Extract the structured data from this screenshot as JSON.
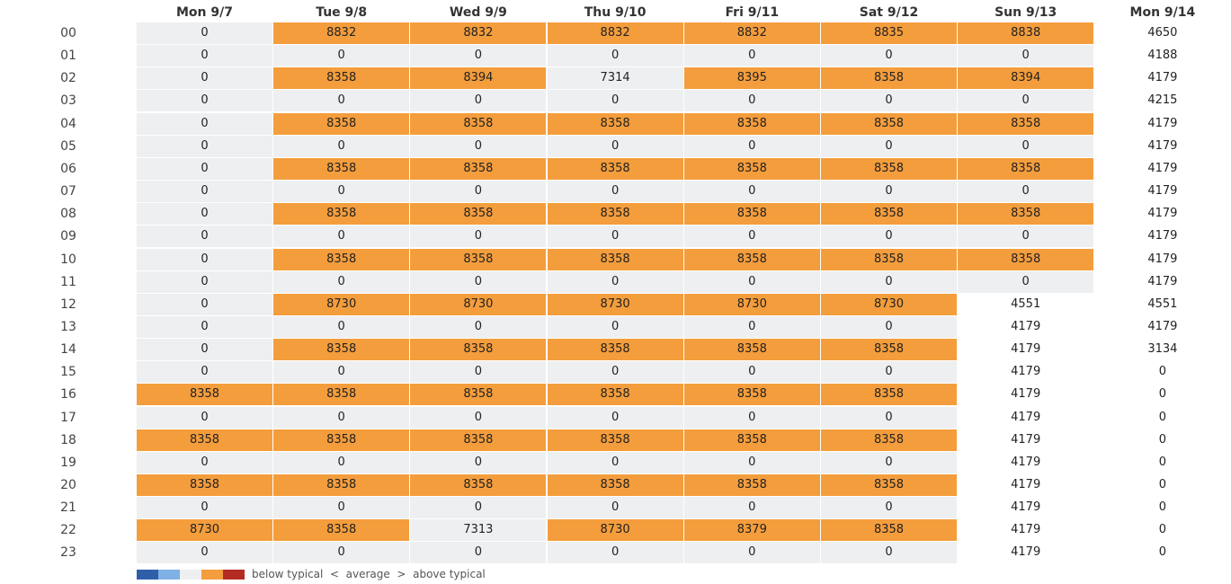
{
  "columns": [
    "Mon 9/7",
    "Tue 9/8",
    "Wed 9/9",
    "Thu 9/10",
    "Fri 9/11",
    "Sat 9/12",
    "Sun 9/13",
    "Mon 9/14"
  ],
  "rows": [
    "00",
    "01",
    "02",
    "03",
    "04",
    "05",
    "06",
    "07",
    "08",
    "09",
    "10",
    "11",
    "12",
    "13",
    "14",
    "15",
    "16",
    "17",
    "18",
    "19",
    "20",
    "21",
    "22",
    "23"
  ],
  "values": [
    [
      0,
      8832,
      8832,
      8832,
      8832,
      8835,
      8838,
      4650
    ],
    [
      0,
      0,
      0,
      0,
      0,
      0,
      0,
      4188
    ],
    [
      0,
      8358,
      8394,
      7314,
      8395,
      8358,
      8394,
      4179
    ],
    [
      0,
      0,
      0,
      0,
      0,
      0,
      0,
      4215
    ],
    [
      0,
      8358,
      8358,
      8358,
      8358,
      8358,
      8358,
      4179
    ],
    [
      0,
      0,
      0,
      0,
      0,
      0,
      0,
      4179
    ],
    [
      0,
      8358,
      8358,
      8358,
      8358,
      8358,
      8358,
      4179
    ],
    [
      0,
      0,
      0,
      0,
      0,
      0,
      0,
      4179
    ],
    [
      0,
      8358,
      8358,
      8358,
      8358,
      8358,
      8358,
      4179
    ],
    [
      0,
      0,
      0,
      0,
      0,
      0,
      0,
      4179
    ],
    [
      0,
      8358,
      8358,
      8358,
      8358,
      8358,
      8358,
      4179
    ],
    [
      0,
      0,
      0,
      0,
      0,
      0,
      0,
      4179
    ],
    [
      0,
      8730,
      8730,
      8730,
      8730,
      8730,
      4551,
      4551
    ],
    [
      0,
      0,
      0,
      0,
      0,
      0,
      4179,
      4179
    ],
    [
      0,
      8358,
      8358,
      8358,
      8358,
      8358,
      4179,
      3134
    ],
    [
      0,
      0,
      0,
      0,
      0,
      0,
      4179,
      0
    ],
    [
      8358,
      8358,
      8358,
      8358,
      8358,
      8358,
      4179,
      0
    ],
    [
      0,
      0,
      0,
      0,
      0,
      0,
      4179,
      0
    ],
    [
      8358,
      8358,
      8358,
      8358,
      8358,
      8358,
      4179,
      0
    ],
    [
      0,
      0,
      0,
      0,
      0,
      0,
      4179,
      0
    ],
    [
      8358,
      8358,
      8358,
      8358,
      8358,
      8358,
      4179,
      0
    ],
    [
      0,
      0,
      0,
      0,
      0,
      0,
      4179,
      0
    ],
    [
      8730,
      8358,
      7313,
      8730,
      8379,
      8358,
      4179,
      0
    ],
    [
      0,
      0,
      0,
      0,
      0,
      0,
      4179,
      0
    ]
  ],
  "levels": [
    [
      0,
      1,
      1,
      1,
      1,
      1,
      1,
      2
    ],
    [
      0,
      0,
      0,
      0,
      0,
      0,
      0,
      2
    ],
    [
      0,
      1,
      1,
      0,
      1,
      1,
      1,
      2
    ],
    [
      0,
      0,
      0,
      0,
      0,
      0,
      0,
      2
    ],
    [
      0,
      1,
      1,
      1,
      1,
      1,
      1,
      2
    ],
    [
      0,
      0,
      0,
      0,
      0,
      0,
      0,
      2
    ],
    [
      0,
      1,
      1,
      1,
      1,
      1,
      1,
      2
    ],
    [
      0,
      0,
      0,
      0,
      0,
      0,
      0,
      2
    ],
    [
      0,
      1,
      1,
      1,
      1,
      1,
      1,
      2
    ],
    [
      0,
      0,
      0,
      0,
      0,
      0,
      0,
      2
    ],
    [
      0,
      1,
      1,
      1,
      1,
      1,
      1,
      2
    ],
    [
      0,
      0,
      0,
      0,
      0,
      0,
      0,
      2
    ],
    [
      0,
      1,
      1,
      1,
      1,
      1,
      2,
      2
    ],
    [
      0,
      0,
      0,
      0,
      0,
      0,
      2,
      2
    ],
    [
      0,
      1,
      1,
      1,
      1,
      1,
      2,
      2
    ],
    [
      0,
      0,
      0,
      0,
      0,
      0,
      2,
      2
    ],
    [
      1,
      1,
      1,
      1,
      1,
      1,
      2,
      2
    ],
    [
      0,
      0,
      0,
      0,
      0,
      0,
      2,
      2
    ],
    [
      1,
      1,
      1,
      1,
      1,
      1,
      2,
      2
    ],
    [
      0,
      0,
      0,
      0,
      0,
      0,
      2,
      2
    ],
    [
      1,
      1,
      1,
      1,
      1,
      1,
      2,
      2
    ],
    [
      0,
      0,
      0,
      0,
      0,
      0,
      2,
      2
    ],
    [
      1,
      1,
      0,
      1,
      1,
      1,
      2,
      2
    ],
    [
      0,
      0,
      0,
      0,
      0,
      0,
      2,
      2
    ]
  ],
  "level_legend": [
    "average",
    "above typical",
    "white"
  ],
  "colors": {
    "average": "#eeeff1",
    "above": "#f49d3c",
    "white": "#ffffff",
    "legend_swatches": [
      "#2f5fa8",
      "#7fb0e6",
      "#eeeff1",
      "#f49d3c",
      "#b32b22"
    ]
  },
  "legend": {
    "text": "below typical  <  average  >  above typical"
  }
}
